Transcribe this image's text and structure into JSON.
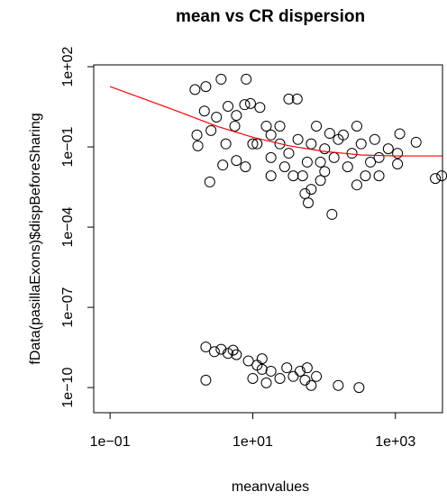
{
  "chart_data": {
    "type": "scatter",
    "title": "mean vs CR dispersion",
    "xlabel": "meanvalues",
    "ylabel": "fData(pasillaExons)$dispBeforeSharing",
    "log_x": true,
    "log_y": true,
    "color": "#000000",
    "xlim": [
      0.059,
      4570
    ],
    "ylim": [
      1.15e-11,
      117
    ],
    "xticks": [
      {
        "value": 0.1,
        "label": "1e−01"
      },
      {
        "value": 10,
        "label": "1e+01"
      },
      {
        "value": 1000,
        "label": "1e+03"
      }
    ],
    "yticks": [
      {
        "value": 100,
        "label": "1e+02"
      },
      {
        "value": 0.1,
        "label": "1e−01"
      },
      {
        "value": 0.0001,
        "label": "1e−04"
      },
      {
        "value": 1e-07,
        "label": "1e−07"
      },
      {
        "value": 1e-10,
        "label": "1e−10"
      }
    ],
    "x": [
      1.55,
      2.2,
      3.6,
      2.1,
      1.65,
      1.7,
      2.6,
      3.1,
      4.5,
      5.9,
      7.7,
      5.6,
      4.2,
      3.8,
      5.9,
      2.5,
      12.6,
      8.1,
      9.3,
      32,
      42,
      18,
      24,
      32,
      43,
      58,
      50,
      54,
      60,
      66,
      89,
      102,
      138,
      129,
      186,
      214,
      246,
      331,
      447,
      380,
      589,
      794,
      1070,
      1150,
      1950,
      1070,
      3630,
      4460,
      78,
      15.5,
      11.5,
      18,
      28,
      7.9,
      120,
      288,
      158,
      89,
      37,
      288,
      513,
      10,
      66,
      24,
      102,
      589,
      18,
      2.2,
      2.9,
      3.6,
      4.5,
      5.3,
      5.9,
      2.2,
      8.7,
      11.5,
      13.5,
      18,
      24,
      30,
      37,
      46,
      54,
      58,
      66,
      78,
      158,
      309,
      13.5,
      10,
      15.5
    ],
    "y": [
      14,
      18,
      34,
      2.2,
      0.28,
      0.11,
      0.41,
      1.3,
      3.3,
      1.5,
      3.8,
      0.6,
      0.13,
      0.021,
      0.031,
      0.0049,
      3.0,
      34,
      4.2,
      6.2,
      6.2,
      0.28,
      0.13,
      0.058,
      0.19,
      0.027,
      0.0083,
      0.0018,
      0.00081,
      0.0026,
      0.0056,
      0.085,
      0.04,
      0.0003,
      0.28,
      0.018,
      0.058,
      0.13,
      0.027,
      0.0083,
      0.04,
      0.085,
      0.058,
      0.31,
      0.15,
      0.023,
      0.0066,
      0.0083,
      0.6,
      0.6,
      0.13,
      0.04,
      0.018,
      0.018,
      0.32,
      0.6,
      0.19,
      0.027,
      0.0083,
      0.0038,
      0.19,
      0.13,
      0.13,
      0.6,
      0.012,
      0.0083,
      0.0083,
      3.3e-09,
      2.2e-09,
      2.7e-09,
      1.9e-09,
      2.5e-09,
      1.7e-09,
      1.9e-10,
      1e-09,
      6.9e-10,
      1.2e-09,
      4.1e-10,
      2.2e-10,
      5.5e-10,
      2.6e-10,
      4.1e-10,
      1.9e-10,
      5.5e-10,
      1.2e-10,
      2.6e-10,
      1.2e-10,
      1e-10,
      4.8e-10,
      2.2e-10,
      1.5e-10
    ],
    "fit": {
      "color": "#ff0000",
      "x": [
        0.1,
        0.3,
        1,
        3.1,
        10,
        32,
        100,
        330,
        1000,
        4500
      ],
      "y": [
        18,
        6.2,
        1.9,
        0.6,
        0.23,
        0.11,
        0.068,
        0.05,
        0.046,
        0.046
      ]
    }
  }
}
